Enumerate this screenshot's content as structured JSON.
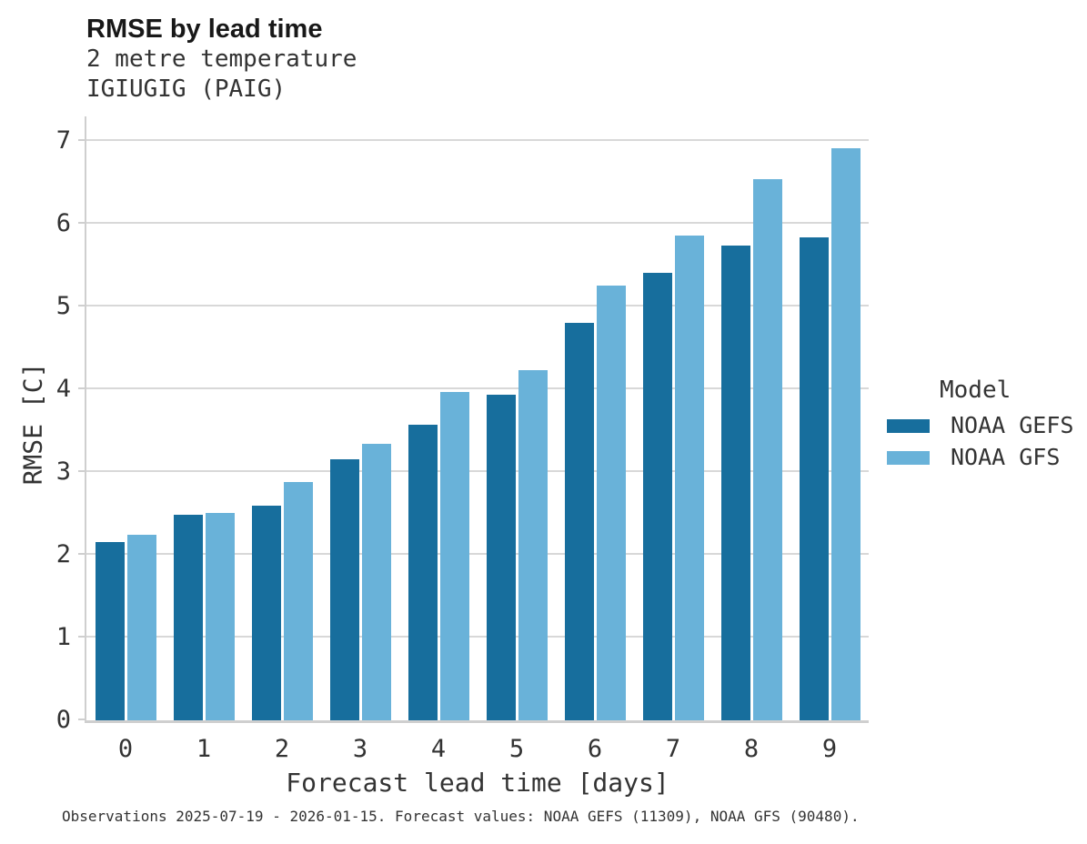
{
  "header": {
    "title": "RMSE by lead time",
    "subtitle_line1": "2 metre temperature",
    "subtitle_line2": "IGIUGIG (PAIG)"
  },
  "chart_data": {
    "type": "bar",
    "title": "RMSE by lead time",
    "subtitle": [
      "2 metre temperature",
      "IGIUGIG (PAIG)"
    ],
    "categories": [
      "0",
      "1",
      "2",
      "3",
      "4",
      "5",
      "6",
      "7",
      "8",
      "9"
    ],
    "series": [
      {
        "name": "NOAA GEFS",
        "color": "#176e9d",
        "values": [
          2.15,
          2.48,
          2.59,
          3.16,
          3.57,
          3.94,
          4.81,
          5.41,
          5.74,
          5.84
        ]
      },
      {
        "name": "NOAA GFS",
        "color": "#69b2d9",
        "values": [
          2.24,
          2.51,
          2.88,
          3.34,
          3.97,
          4.23,
          5.26,
          5.86,
          6.54,
          6.91
        ]
      }
    ],
    "xlabel": "Forecast lead time [days]",
    "ylabel": "RMSE [C]",
    "ylim": [
      0,
      7.3
    ],
    "yticks": [
      0,
      1,
      2,
      3,
      4,
      5,
      6,
      7
    ],
    "grid": "horizontal",
    "legend_title": "Model",
    "legend_position": "right"
  },
  "caption": "Observations 2025-07-19 - 2026-01-15. Forecast values: NOAA GEFS (11309), NOAA GFS (90480).",
  "colors": {
    "gefs": "#176e9d",
    "gfs": "#69b2d9",
    "grid": "#d8d8d8",
    "spine": "#cfcfcf",
    "text": "#333333",
    "title": "#181818",
    "background": "#ffffff"
  }
}
